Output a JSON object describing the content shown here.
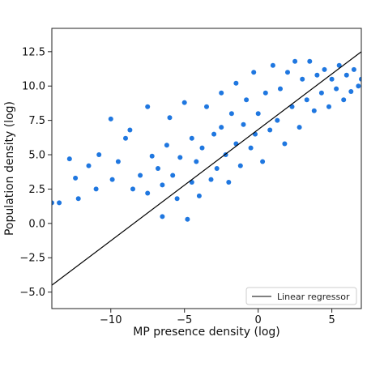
{
  "chart_data": {
    "type": "scatter",
    "xlabel": "MP presence density (log)",
    "ylabel": "Population density (log)",
    "xlim": [
      -14,
      7
    ],
    "ylim": [
      -6.2,
      14.2
    ],
    "xticks": [
      {
        "value": -10,
        "label": "−10"
      },
      {
        "value": -5,
        "label": "−5"
      },
      {
        "value": 0,
        "label": "0"
      },
      {
        "value": 5,
        "label": "5"
      }
    ],
    "yticks": [
      {
        "value": -5.0,
        "label": "−5.0"
      },
      {
        "value": -2.5,
        "label": "−2.5"
      },
      {
        "value": 0.0,
        "label": "0.0"
      },
      {
        "value": 2.5,
        "label": "2.5"
      },
      {
        "value": 5.0,
        "label": "5.0"
      },
      {
        "value": 7.5,
        "label": "7.5"
      },
      {
        "value": 10.0,
        "label": "10.0"
      },
      {
        "value": 12.5,
        "label": "12.5"
      }
    ],
    "grid": false,
    "legend_position": "bottom-right",
    "point_color": "#1f77e0",
    "line_color": "#000000",
    "series": [
      {
        "type": "scatter",
        "points": [
          [
            -14.0,
            1.5
          ],
          [
            -13.5,
            1.5
          ],
          [
            -12.8,
            4.7
          ],
          [
            -12.4,
            3.3
          ],
          [
            -12.2,
            1.8
          ],
          [
            -11.5,
            4.2
          ],
          [
            -11.0,
            2.5
          ],
          [
            -10.8,
            5.0
          ],
          [
            -10.0,
            7.6
          ],
          [
            -9.9,
            3.2
          ],
          [
            -9.5,
            4.5
          ],
          [
            -9.0,
            6.2
          ],
          [
            -8.7,
            6.8
          ],
          [
            -8.5,
            2.5
          ],
          [
            -8.0,
            3.5
          ],
          [
            -7.5,
            2.2
          ],
          [
            -7.5,
            8.5
          ],
          [
            -7.2,
            4.9
          ],
          [
            -6.8,
            4.0
          ],
          [
            -6.5,
            2.8
          ],
          [
            -6.5,
            0.5
          ],
          [
            -6.2,
            5.7
          ],
          [
            -6.0,
            7.7
          ],
          [
            -5.8,
            3.5
          ],
          [
            -5.5,
            1.8
          ],
          [
            -5.3,
            4.8
          ],
          [
            -5.0,
            8.8
          ],
          [
            -4.8,
            0.3
          ],
          [
            -4.5,
            3.0
          ],
          [
            -4.5,
            6.2
          ],
          [
            -4.2,
            4.5
          ],
          [
            -4.0,
            2.0
          ],
          [
            -3.8,
            5.5
          ],
          [
            -3.5,
            8.5
          ],
          [
            -3.2,
            3.2
          ],
          [
            -3.0,
            6.5
          ],
          [
            -2.8,
            4.0
          ],
          [
            -2.5,
            9.5
          ],
          [
            -2.5,
            7.0
          ],
          [
            -2.2,
            5.0
          ],
          [
            -2.0,
            3.0
          ],
          [
            -1.8,
            8.0
          ],
          [
            -1.5,
            5.8
          ],
          [
            -1.5,
            10.2
          ],
          [
            -1.2,
            4.2
          ],
          [
            -1.0,
            7.2
          ],
          [
            -0.8,
            9.0
          ],
          [
            -0.5,
            5.5
          ],
          [
            -0.3,
            11.0
          ],
          [
            -0.2,
            6.5
          ],
          [
            0.0,
            8.0
          ],
          [
            0.3,
            4.5
          ],
          [
            0.5,
            9.5
          ],
          [
            0.8,
            6.8
          ],
          [
            1.0,
            11.5
          ],
          [
            1.3,
            7.5
          ],
          [
            1.5,
            9.8
          ],
          [
            1.8,
            5.8
          ],
          [
            2.0,
            11.0
          ],
          [
            2.3,
            8.5
          ],
          [
            2.5,
            11.8
          ],
          [
            2.8,
            7.0
          ],
          [
            3.0,
            10.5
          ],
          [
            3.3,
            9.0
          ],
          [
            3.5,
            11.8
          ],
          [
            3.8,
            8.2
          ],
          [
            4.0,
            10.8
          ],
          [
            4.3,
            9.5
          ],
          [
            4.5,
            11.2
          ],
          [
            4.8,
            8.5
          ],
          [
            5.0,
            10.5
          ],
          [
            5.3,
            9.8
          ],
          [
            5.5,
            11.5
          ],
          [
            5.8,
            9.0
          ],
          [
            6.0,
            10.8
          ],
          [
            6.3,
            9.6
          ],
          [
            6.5,
            11.2
          ],
          [
            6.8,
            10.0
          ],
          [
            7.0,
            10.5
          ]
        ]
      },
      {
        "type": "line",
        "name": "Linear regressor",
        "points": [
          [
            -14.0,
            -4.5
          ],
          [
            7.0,
            12.5
          ]
        ]
      }
    ]
  }
}
